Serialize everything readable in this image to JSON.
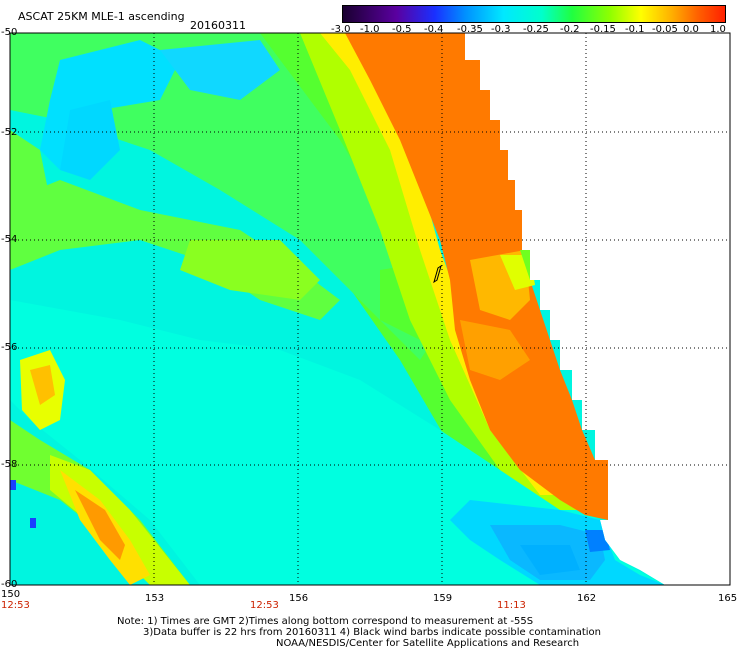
{
  "header": {
    "title": "ASCAT 25KM MLE-1 ascending",
    "date": "20160311"
  },
  "colorbar": {
    "labels": [
      "-3.0",
      "-1.0",
      "-0.5",
      "-0.4",
      "-0.35",
      "-0.3",
      "-0.25",
      "-0.2",
      "-0.15",
      "-0.1",
      "-0.05",
      "0.0",
      "1.0"
    ],
    "colors": [
      "#1a0030",
      "#4a0090",
      "#1a2cff",
      "#0080ff",
      "#00c8ff",
      "#00ffff",
      "#00ff9a",
      "#33ff00",
      "#a8ff00",
      "#ffff00",
      "#ffb000",
      "#ff7000",
      "#ff2000"
    ]
  },
  "axes": {
    "y_labels": [
      "-50",
      "-52",
      "-54",
      "-56",
      "-58",
      "-60"
    ],
    "x_labels": [
      "150",
      "153",
      "156",
      "159",
      "162",
      "165"
    ]
  },
  "times": [
    "12:53",
    "12:53",
    "11:13"
  ],
  "notes": {
    "line1": "Note: 1) Times are GMT 2)Times along bottom correspond to measurement at -55S",
    "line2": "3)Data buffer is 22 hrs from 20160311 4) Black wind barbs indicate possible contamination",
    "line3": "NOAA/NESDIS/Center for Satellite Applications and Research"
  }
}
